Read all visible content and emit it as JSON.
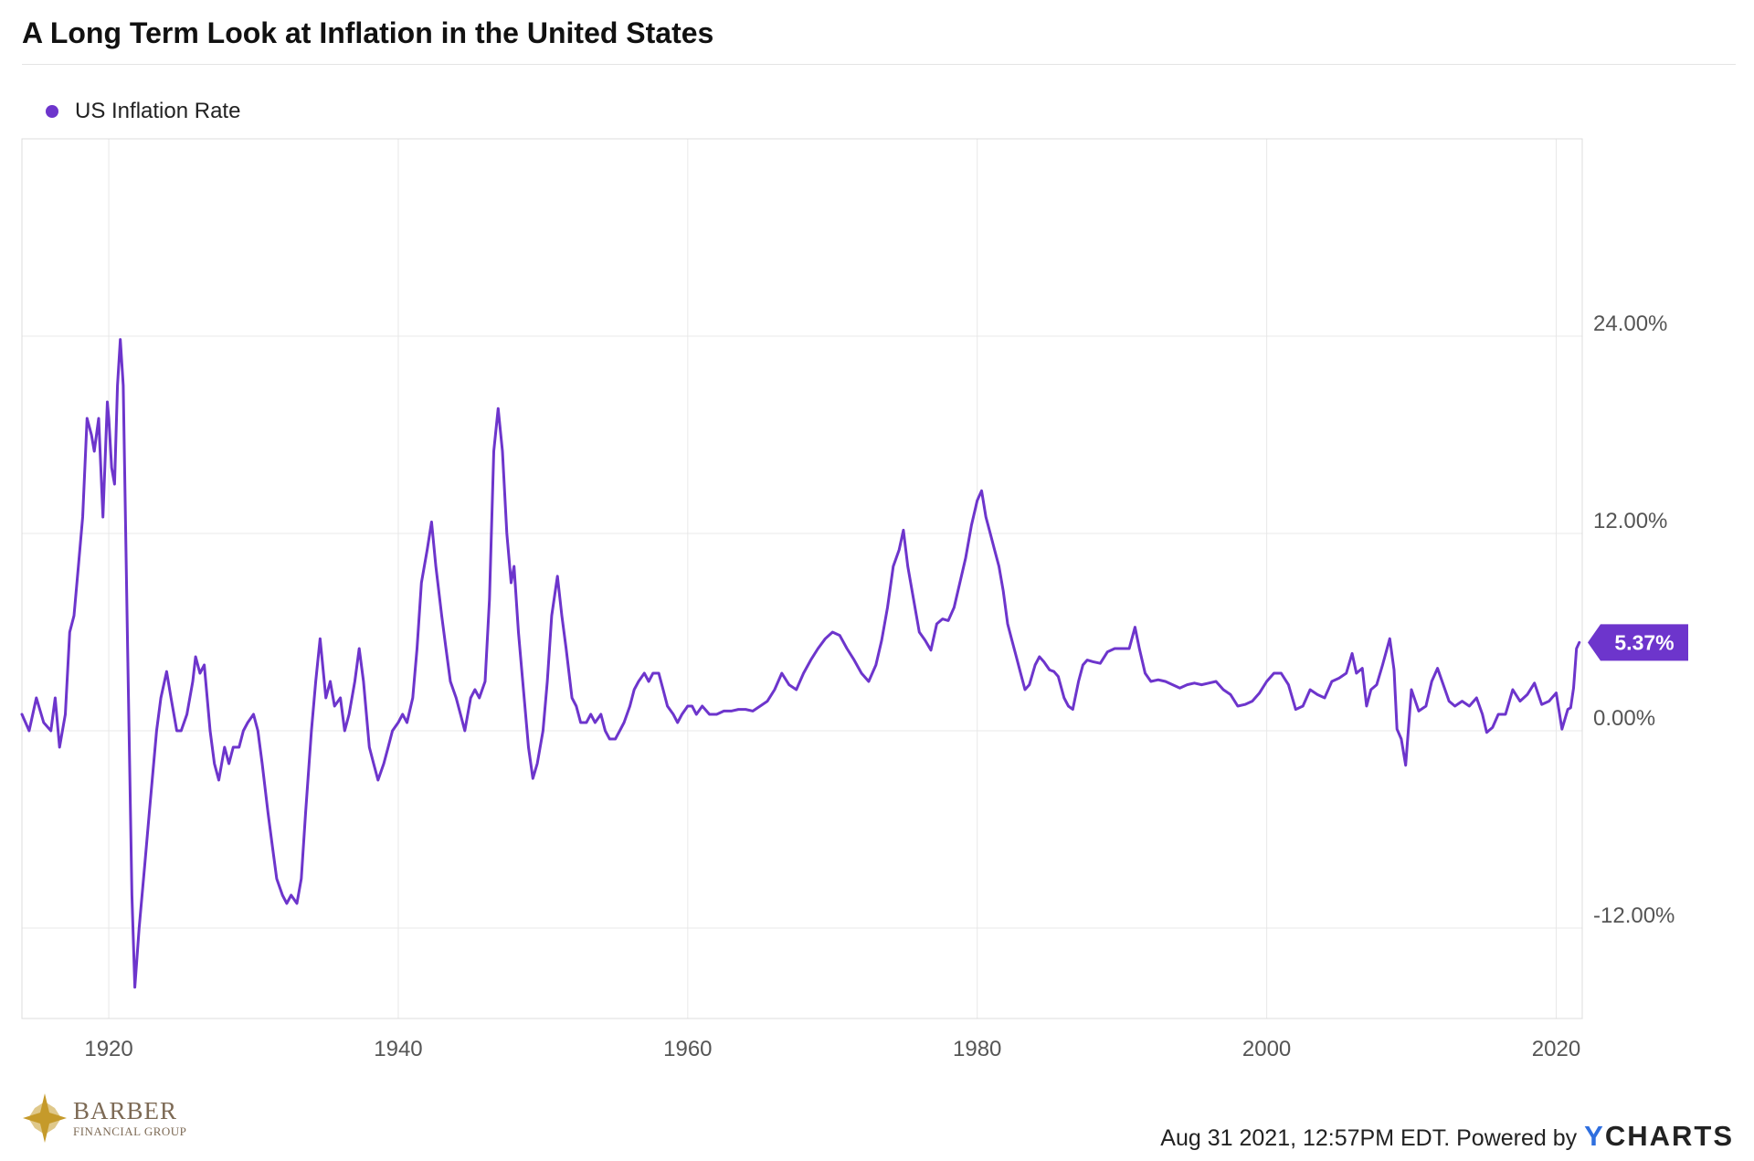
{
  "title": "A Long Term Look at Inflation in the United States",
  "legend": {
    "label": "US Inflation Rate"
  },
  "colors": {
    "series": "#6d35cc",
    "grid": "#e8e8e8",
    "axis_text": "#555555",
    "brand_accent": "#2f6fdf",
    "logo": "#c59a2a"
  },
  "chart_data": {
    "type": "line",
    "x_axis": {
      "min": 1914.0,
      "max": 2021.8,
      "ticks": [
        1920,
        1940,
        1960,
        1980,
        2000,
        2020
      ]
    },
    "y_axis": {
      "min": -17.5,
      "max": 36.0,
      "ticks": [
        -12,
        0,
        12,
        24
      ],
      "tick_labels": [
        "-12.00%",
        "0.00%",
        "12.00%",
        "24.00%"
      ],
      "position": "right"
    },
    "grid": true,
    "series": [
      {
        "name": "US Inflation Rate",
        "last_value_label": "5.37%",
        "points": [
          [
            1914.0,
            1.0
          ],
          [
            1914.5,
            0.0
          ],
          [
            1915.0,
            2.0
          ],
          [
            1915.5,
            0.5
          ],
          [
            1916.0,
            0.0
          ],
          [
            1916.3,
            2.0
          ],
          [
            1916.6,
            -1.0
          ],
          [
            1917.0,
            1.0
          ],
          [
            1917.3,
            6.0
          ],
          [
            1917.6,
            7.0
          ],
          [
            1917.9,
            10.0
          ],
          [
            1918.2,
            13.0
          ],
          [
            1918.5,
            19.0
          ],
          [
            1918.8,
            18.0
          ],
          [
            1919.0,
            17.0
          ],
          [
            1919.3,
            19.0
          ],
          [
            1919.6,
            13.0
          ],
          [
            1919.9,
            20.0
          ],
          [
            1920.0,
            19.0
          ],
          [
            1920.2,
            16.0
          ],
          [
            1920.4,
            15.0
          ],
          [
            1920.6,
            21.0
          ],
          [
            1920.8,
            23.8
          ],
          [
            1921.0,
            21.0
          ],
          [
            1921.3,
            5.0
          ],
          [
            1921.6,
            -10.0
          ],
          [
            1921.8,
            -15.6
          ],
          [
            1922.1,
            -12.0
          ],
          [
            1922.5,
            -8.0
          ],
          [
            1922.8,
            -5.0
          ],
          [
            1923.0,
            -3.0
          ],
          [
            1923.3,
            0.0
          ],
          [
            1923.6,
            2.0
          ],
          [
            1924.0,
            3.6
          ],
          [
            1924.3,
            2.0
          ],
          [
            1924.7,
            0.0
          ],
          [
            1925.0,
            0.0
          ],
          [
            1925.4,
            1.0
          ],
          [
            1925.8,
            3.0
          ],
          [
            1926.0,
            4.5
          ],
          [
            1926.3,
            3.5
          ],
          [
            1926.6,
            4.0
          ],
          [
            1927.0,
            0.0
          ],
          [
            1927.3,
            -2.0
          ],
          [
            1927.6,
            -3.0
          ],
          [
            1928.0,
            -1.0
          ],
          [
            1928.3,
            -2.0
          ],
          [
            1928.6,
            -1.0
          ],
          [
            1929.0,
            -1.0
          ],
          [
            1929.3,
            0.0
          ],
          [
            1929.6,
            0.5
          ],
          [
            1930.0,
            1.0
          ],
          [
            1930.3,
            0.0
          ],
          [
            1930.6,
            -2.0
          ],
          [
            1931.0,
            -5.0
          ],
          [
            1931.3,
            -7.0
          ],
          [
            1931.6,
            -9.0
          ],
          [
            1932.0,
            -10.0
          ],
          [
            1932.3,
            -10.5
          ],
          [
            1932.6,
            -10.0
          ],
          [
            1933.0,
            -10.5
          ],
          [
            1933.3,
            -9.0
          ],
          [
            1933.6,
            -5.0
          ],
          [
            1934.0,
            0.0
          ],
          [
            1934.3,
            3.0
          ],
          [
            1934.6,
            5.6
          ],
          [
            1935.0,
            2.0
          ],
          [
            1935.3,
            3.0
          ],
          [
            1935.6,
            1.5
          ],
          [
            1936.0,
            2.0
          ],
          [
            1936.3,
            0.0
          ],
          [
            1936.6,
            1.0
          ],
          [
            1937.0,
            3.0
          ],
          [
            1937.3,
            5.0
          ],
          [
            1937.6,
            3.0
          ],
          [
            1938.0,
            -1.0
          ],
          [
            1938.3,
            -2.0
          ],
          [
            1938.6,
            -3.0
          ],
          [
            1939.0,
            -2.0
          ],
          [
            1939.3,
            -1.0
          ],
          [
            1939.6,
            0.0
          ],
          [
            1940.0,
            0.5
          ],
          [
            1940.3,
            1.0
          ],
          [
            1940.6,
            0.5
          ],
          [
            1941.0,
            2.0
          ],
          [
            1941.3,
            5.0
          ],
          [
            1941.6,
            9.0
          ],
          [
            1942.0,
            11.0
          ],
          [
            1942.3,
            12.7
          ],
          [
            1942.6,
            10.0
          ],
          [
            1943.0,
            7.0
          ],
          [
            1943.3,
            5.0
          ],
          [
            1943.6,
            3.0
          ],
          [
            1944.0,
            2.0
          ],
          [
            1944.3,
            1.0
          ],
          [
            1944.6,
            0.0
          ],
          [
            1945.0,
            2.0
          ],
          [
            1945.3,
            2.5
          ],
          [
            1945.6,
            2.0
          ],
          [
            1946.0,
            3.0
          ],
          [
            1946.3,
            8.0
          ],
          [
            1946.6,
            17.0
          ],
          [
            1946.9,
            19.6
          ],
          [
            1947.2,
            17.0
          ],
          [
            1947.5,
            12.0
          ],
          [
            1947.8,
            9.0
          ],
          [
            1948.0,
            10.0
          ],
          [
            1948.3,
            6.0
          ],
          [
            1948.6,
            3.0
          ],
          [
            1949.0,
            -1.0
          ],
          [
            1949.3,
            -2.9
          ],
          [
            1949.6,
            -2.0
          ],
          [
            1950.0,
            0.0
          ],
          [
            1950.3,
            3.0
          ],
          [
            1950.6,
            7.0
          ],
          [
            1951.0,
            9.4
          ],
          [
            1951.3,
            7.0
          ],
          [
            1951.6,
            5.0
          ],
          [
            1952.0,
            2.0
          ],
          [
            1952.3,
            1.5
          ],
          [
            1952.6,
            0.5
          ],
          [
            1953.0,
            0.5
          ],
          [
            1953.3,
            1.0
          ],
          [
            1953.6,
            0.5
          ],
          [
            1954.0,
            1.0
          ],
          [
            1954.3,
            0.0
          ],
          [
            1954.6,
            -0.5
          ],
          [
            1955.0,
            -0.5
          ],
          [
            1955.3,
            0.0
          ],
          [
            1955.6,
            0.5
          ],
          [
            1956.0,
            1.5
          ],
          [
            1956.3,
            2.5
          ],
          [
            1956.6,
            3.0
          ],
          [
            1957.0,
            3.5
          ],
          [
            1957.3,
            3.0
          ],
          [
            1957.6,
            3.5
          ],
          [
            1958.0,
            3.5
          ],
          [
            1958.3,
            2.5
          ],
          [
            1958.6,
            1.5
          ],
          [
            1959.0,
            1.0
          ],
          [
            1959.3,
            0.5
          ],
          [
            1959.6,
            1.0
          ],
          [
            1960.0,
            1.5
          ],
          [
            1960.3,
            1.5
          ],
          [
            1960.6,
            1.0
          ],
          [
            1961.0,
            1.5
          ],
          [
            1961.5,
            1.0
          ],
          [
            1962.0,
            1.0
          ],
          [
            1962.5,
            1.2
          ],
          [
            1963.0,
            1.2
          ],
          [
            1963.5,
            1.3
          ],
          [
            1964.0,
            1.3
          ],
          [
            1964.5,
            1.2
          ],
          [
            1965.0,
            1.5
          ],
          [
            1965.5,
            1.8
          ],
          [
            1966.0,
            2.5
          ],
          [
            1966.5,
            3.5
          ],
          [
            1967.0,
            2.8
          ],
          [
            1967.5,
            2.5
          ],
          [
            1968.0,
            3.5
          ],
          [
            1968.5,
            4.3
          ],
          [
            1969.0,
            5.0
          ],
          [
            1969.5,
            5.6
          ],
          [
            1970.0,
            6.0
          ],
          [
            1970.5,
            5.8
          ],
          [
            1971.0,
            5.0
          ],
          [
            1971.5,
            4.3
          ],
          [
            1972.0,
            3.5
          ],
          [
            1972.5,
            3.0
          ],
          [
            1973.0,
            4.0
          ],
          [
            1973.4,
            5.5
          ],
          [
            1973.8,
            7.5
          ],
          [
            1974.2,
            10.0
          ],
          [
            1974.6,
            11.0
          ],
          [
            1974.9,
            12.2
          ],
          [
            1975.2,
            10.0
          ],
          [
            1975.6,
            8.0
          ],
          [
            1976.0,
            6.0
          ],
          [
            1976.4,
            5.5
          ],
          [
            1976.8,
            4.9
          ],
          [
            1977.2,
            6.5
          ],
          [
            1977.6,
            6.8
          ],
          [
            1978.0,
            6.7
          ],
          [
            1978.4,
            7.5
          ],
          [
            1978.8,
            9.0
          ],
          [
            1979.2,
            10.5
          ],
          [
            1979.6,
            12.5
          ],
          [
            1980.0,
            14.0
          ],
          [
            1980.3,
            14.6
          ],
          [
            1980.6,
            13.0
          ],
          [
            1980.9,
            12.0
          ],
          [
            1981.2,
            11.0
          ],
          [
            1981.5,
            10.0
          ],
          [
            1981.8,
            8.5
          ],
          [
            1982.1,
            6.5
          ],
          [
            1982.4,
            5.5
          ],
          [
            1982.7,
            4.5
          ],
          [
            1983.0,
            3.5
          ],
          [
            1983.3,
            2.5
          ],
          [
            1983.6,
            2.8
          ],
          [
            1984.0,
            4.0
          ],
          [
            1984.3,
            4.5
          ],
          [
            1984.6,
            4.2
          ],
          [
            1985.0,
            3.7
          ],
          [
            1985.3,
            3.6
          ],
          [
            1985.6,
            3.3
          ],
          [
            1986.0,
            2.0
          ],
          [
            1986.3,
            1.5
          ],
          [
            1986.6,
            1.3
          ],
          [
            1987.0,
            3.0
          ],
          [
            1987.3,
            4.0
          ],
          [
            1987.6,
            4.3
          ],
          [
            1988.0,
            4.2
          ],
          [
            1988.5,
            4.1
          ],
          [
            1989.0,
            4.8
          ],
          [
            1989.5,
            5.0
          ],
          [
            1990.0,
            5.0
          ],
          [
            1990.5,
            5.0
          ],
          [
            1990.9,
            6.3
          ],
          [
            1991.2,
            5.0
          ],
          [
            1991.6,
            3.5
          ],
          [
            1992.0,
            3.0
          ],
          [
            1992.5,
            3.1
          ],
          [
            1993.0,
            3.0
          ],
          [
            1993.5,
            2.8
          ],
          [
            1994.0,
            2.6
          ],
          [
            1994.5,
            2.8
          ],
          [
            1995.0,
            2.9
          ],
          [
            1995.5,
            2.8
          ],
          [
            1996.0,
            2.9
          ],
          [
            1996.5,
            3.0
          ],
          [
            1997.0,
            2.5
          ],
          [
            1997.5,
            2.2
          ],
          [
            1998.0,
            1.5
          ],
          [
            1998.5,
            1.6
          ],
          [
            1999.0,
            1.8
          ],
          [
            1999.5,
            2.3
          ],
          [
            2000.0,
            3.0
          ],
          [
            2000.5,
            3.5
          ],
          [
            2001.0,
            3.5
          ],
          [
            2001.5,
            2.8
          ],
          [
            2002.0,
            1.3
          ],
          [
            2002.5,
            1.5
          ],
          [
            2003.0,
            2.5
          ],
          [
            2003.5,
            2.2
          ],
          [
            2004.0,
            2.0
          ],
          [
            2004.5,
            3.0
          ],
          [
            2005.0,
            3.2
          ],
          [
            2005.5,
            3.5
          ],
          [
            2005.9,
            4.7
          ],
          [
            2006.2,
            3.5
          ],
          [
            2006.6,
            3.8
          ],
          [
            2006.9,
            1.5
          ],
          [
            2007.2,
            2.5
          ],
          [
            2007.6,
            2.8
          ],
          [
            2008.0,
            4.0
          ],
          [
            2008.5,
            5.6
          ],
          [
            2008.8,
            3.7
          ],
          [
            2009.0,
            0.1
          ],
          [
            2009.3,
            -0.5
          ],
          [
            2009.6,
            -2.1
          ],
          [
            2010.0,
            2.5
          ],
          [
            2010.5,
            1.2
          ],
          [
            2011.0,
            1.5
          ],
          [
            2011.4,
            3.0
          ],
          [
            2011.8,
            3.8
          ],
          [
            2012.2,
            2.8
          ],
          [
            2012.6,
            1.8
          ],
          [
            2013.0,
            1.5
          ],
          [
            2013.5,
            1.8
          ],
          [
            2014.0,
            1.5
          ],
          [
            2014.5,
            2.0
          ],
          [
            2014.9,
            1.0
          ],
          [
            2015.2,
            -0.1
          ],
          [
            2015.6,
            0.2
          ],
          [
            2016.0,
            1.0
          ],
          [
            2016.5,
            1.0
          ],
          [
            2017.0,
            2.5
          ],
          [
            2017.5,
            1.8
          ],
          [
            2018.0,
            2.2
          ],
          [
            2018.5,
            2.9
          ],
          [
            2019.0,
            1.6
          ],
          [
            2019.5,
            1.8
          ],
          [
            2020.0,
            2.3
          ],
          [
            2020.4,
            0.1
          ],
          [
            2020.8,
            1.3
          ],
          [
            2021.0,
            1.4
          ],
          [
            2021.2,
            2.6
          ],
          [
            2021.4,
            5.0
          ],
          [
            2021.6,
            5.37
          ]
        ]
      }
    ]
  },
  "logo": {
    "name": "BARBER",
    "subtitle": "FINANCIAL GROUP"
  },
  "footer": {
    "timestamp": "Aug 31 2021, 12:57PM EDT. Powered by",
    "brand_initial": "Y",
    "brand_rest": "CHARTS"
  }
}
